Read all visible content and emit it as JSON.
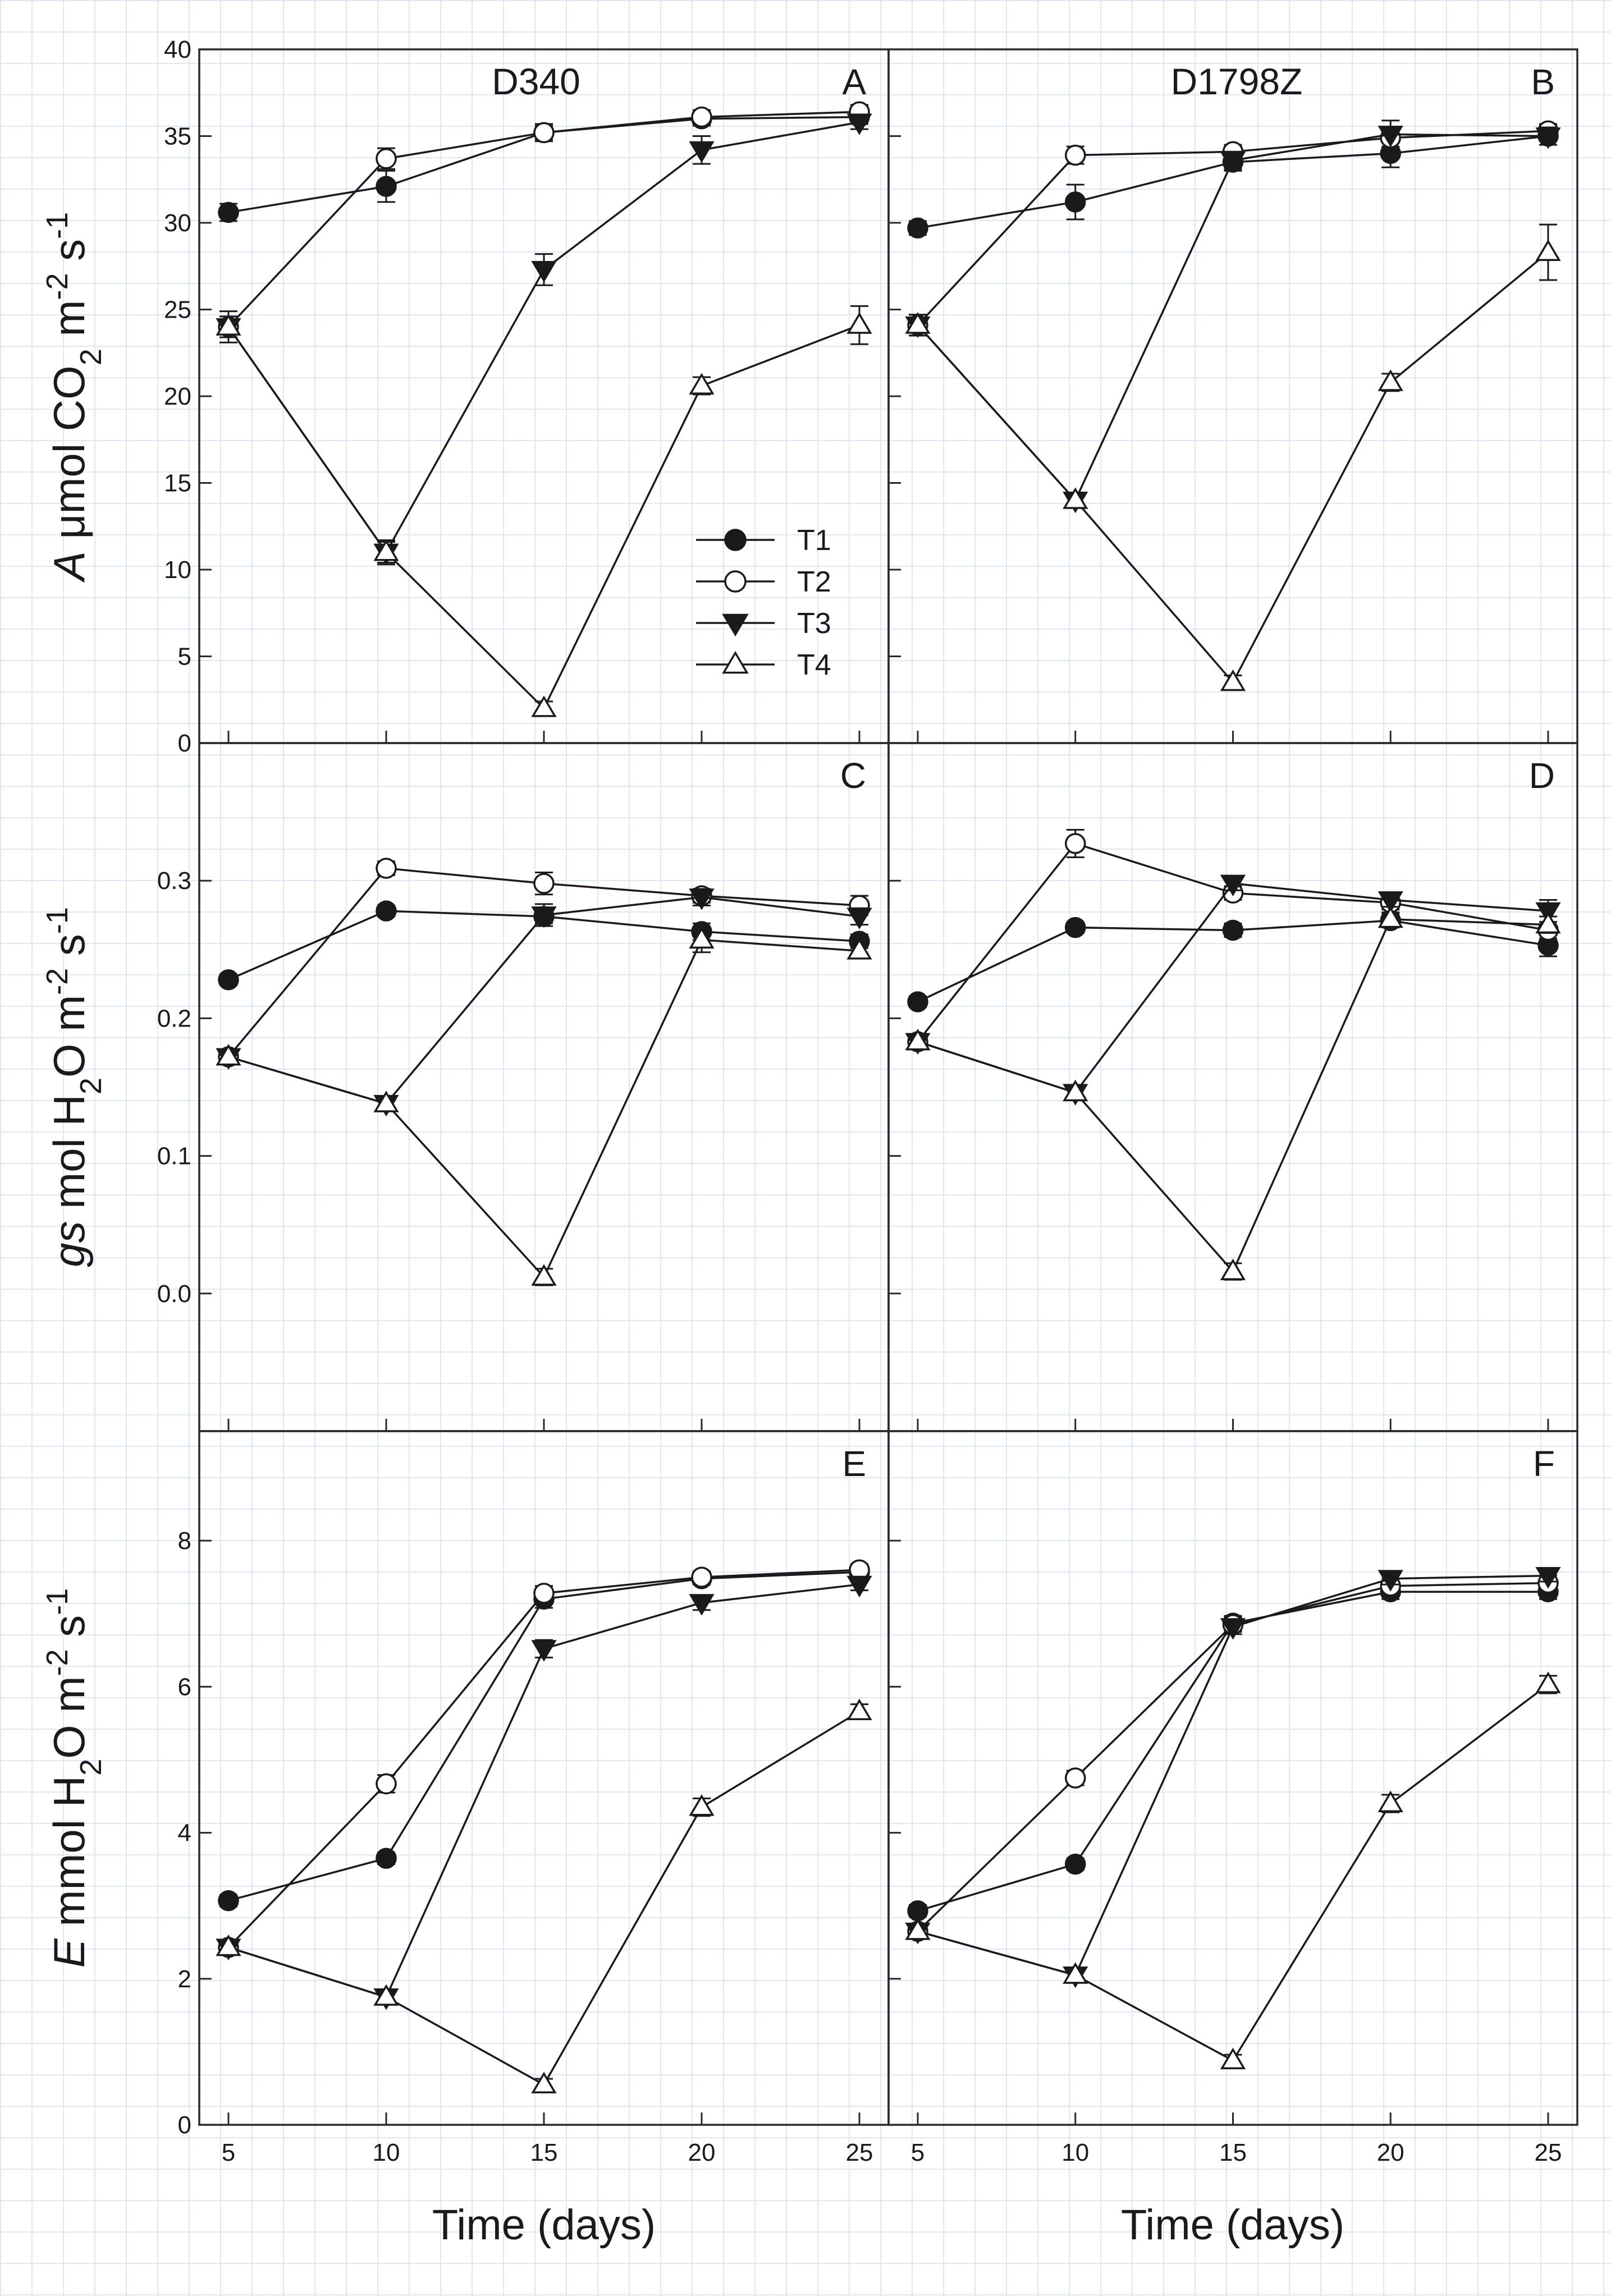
{
  "figure": {
    "xlabel": "Time (days)",
    "legend": [
      {
        "name": "T1",
        "marker": "filled-circle"
      },
      {
        "name": "T2",
        "marker": "open-circle"
      },
      {
        "name": "T3",
        "marker": "filled-triangle-down"
      },
      {
        "name": "T4",
        "marker": "open-triangle-up"
      }
    ],
    "columns": [
      "D340",
      "D1798Z"
    ],
    "rows": [
      {
        "var": "A",
        "unit_parts": [
          {
            "t": " μmol CO"
          },
          {
            "t": "2",
            "sub": true
          },
          {
            "t": " m"
          },
          {
            "t": "-2",
            "sup": true
          },
          {
            "t": " s"
          },
          {
            "t": "-1",
            "sup": true
          }
        ]
      },
      {
        "var": "gs",
        "unit_parts": [
          {
            "t": " mol H"
          },
          {
            "t": "2",
            "sub": true
          },
          {
            "t": "O m"
          },
          {
            "t": "-2",
            "sup": true
          },
          {
            "t": " s"
          },
          {
            "t": "-1",
            "sup": true
          }
        ]
      },
      {
        "var": "E",
        "unit_parts": [
          {
            "t": " mmol H"
          },
          {
            "t": "2",
            "sub": true
          },
          {
            "t": "O m"
          },
          {
            "t": "-2",
            "sup": true
          },
          {
            "t": " s"
          },
          {
            "t": "-1",
            "sup": true
          }
        ]
      }
    ]
  },
  "chart_data": [
    {
      "type": "line",
      "panel": "A",
      "cultivar": "D340",
      "ylabel": "A μmol CO2 m-2 s-1",
      "xlabel": "Time (days)",
      "x": [
        5,
        10,
        15,
        20,
        25
      ],
      "ylim": [
        0,
        40
      ],
      "yticks": [
        0,
        5,
        10,
        15,
        20,
        25,
        30,
        35,
        40
      ],
      "xticks": [
        5,
        10,
        15,
        20,
        25
      ],
      "series": [
        {
          "name": "T1",
          "values": [
            30.6,
            32.1,
            35.2,
            36.0,
            36.1
          ],
          "err": [
            0.5,
            0.9,
            0.4,
            0.4,
            0.4
          ]
        },
        {
          "name": "T2",
          "values": [
            24.0,
            33.7,
            35.2,
            36.1,
            36.4
          ],
          "err": [
            0.6,
            0.6,
            0.5,
            0.4,
            0.4
          ]
        },
        {
          "name": "T3",
          "values": [
            24.0,
            11.0,
            27.3,
            34.2,
            35.8
          ],
          "err": [
            0.6,
            0.7,
            0.9,
            0.8,
            0.4
          ]
        },
        {
          "name": "T4",
          "values": [
            24.0,
            11.0,
            2.0,
            20.6,
            24.1
          ],
          "err": [
            0.9,
            0.6,
            0.4,
            0.5,
            1.1
          ]
        }
      ]
    },
    {
      "type": "line",
      "panel": "B",
      "cultivar": "D1798Z",
      "ylabel": "A μmol CO2 m-2 s-1",
      "xlabel": "Time (days)",
      "x": [
        5,
        10,
        15,
        20,
        25
      ],
      "ylim": [
        0,
        40
      ],
      "yticks": [
        0,
        5,
        10,
        15,
        20,
        25,
        30,
        35,
        40
      ],
      "xticks": [
        5,
        10,
        15,
        20,
        25
      ],
      "series": [
        {
          "name": "T1",
          "values": [
            29.7,
            31.2,
            33.5,
            34.0,
            35.0
          ],
          "err": [
            0.4,
            1.0,
            0.5,
            0.8,
            0.5
          ]
        },
        {
          "name": "T2",
          "values": [
            24.1,
            33.9,
            34.1,
            34.9,
            35.3
          ],
          "err": [
            0.6,
            0.5,
            0.4,
            0.5,
            0.4
          ]
        },
        {
          "name": "T3",
          "values": [
            24.1,
            14.0,
            33.6,
            35.1,
            35.0
          ],
          "err": [
            0.6,
            0.4,
            0.5,
            0.8,
            0.5
          ]
        },
        {
          "name": "T4",
          "values": [
            24.1,
            14.0,
            3.5,
            20.8,
            28.3
          ],
          "err": [
            0.6,
            0.4,
            0.4,
            0.5,
            1.6
          ]
        }
      ]
    },
    {
      "type": "line",
      "panel": "C",
      "cultivar": "D340",
      "ylabel": "gs mol H2O m-2 s-1",
      "xlabel": "Time (days)",
      "x": [
        5,
        10,
        15,
        20,
        25
      ],
      "ylim": [
        -0.1,
        0.4
      ],
      "yticks": [
        0.0,
        0.1,
        0.2,
        0.3
      ],
      "xticks": [
        5,
        10,
        15,
        20,
        25
      ],
      "series": [
        {
          "name": "T1",
          "values": [
            0.228,
            0.278,
            0.274,
            0.263,
            0.256
          ],
          "err": [
            0.004,
            0.004,
            0.005,
            0.006,
            0.005
          ]
        },
        {
          "name": "T2",
          "values": [
            0.172,
            0.309,
            0.298,
            0.289,
            0.282
          ],
          "err": [
            0.004,
            0.005,
            0.008,
            0.005,
            0.007
          ]
        },
        {
          "name": "T3",
          "values": [
            0.172,
            0.138,
            0.275,
            0.288,
            0.274
          ],
          "err": [
            0.004,
            0.004,
            0.008,
            0.006,
            0.006
          ]
        },
        {
          "name": "T4",
          "values": [
            0.172,
            0.138,
            0.012,
            0.257,
            0.249
          ],
          "err": [
            0.004,
            0.004,
            0.006,
            0.009,
            0.005
          ]
        }
      ]
    },
    {
      "type": "line",
      "panel": "D",
      "cultivar": "D1798Z",
      "ylabel": "gs mol H2O m-2 s-1",
      "xlabel": "Time (days)",
      "x": [
        5,
        10,
        15,
        20,
        25
      ],
      "ylim": [
        -0.1,
        0.4
      ],
      "yticks": [
        0.0,
        0.1,
        0.2,
        0.3
      ],
      "xticks": [
        5,
        10,
        15,
        20,
        25
      ],
      "series": [
        {
          "name": "T1",
          "values": [
            0.212,
            0.266,
            0.264,
            0.271,
            0.253
          ],
          "err": [
            0.004,
            0.004,
            0.005,
            0.005,
            0.008
          ]
        },
        {
          "name": "T2",
          "values": [
            0.183,
            0.327,
            0.291,
            0.284,
            0.264
          ],
          "err": [
            0.004,
            0.01,
            0.005,
            0.005,
            0.006
          ]
        },
        {
          "name": "T3",
          "values": [
            0.183,
            0.146,
            0.298,
            0.286,
            0.278
          ],
          "err": [
            0.004,
            0.004,
            0.005,
            0.005,
            0.008
          ]
        },
        {
          "name": "T4",
          "values": [
            0.183,
            0.146,
            0.016,
            0.272,
            0.268
          ],
          "err": [
            0.004,
            0.004,
            0.006,
            0.005,
            0.006
          ]
        }
      ]
    },
    {
      "type": "line",
      "panel": "E",
      "cultivar": "D340",
      "ylabel": "E mmol H2O m-2 s-1",
      "xlabel": "Time (days)",
      "x": [
        5,
        10,
        15,
        20,
        25
      ],
      "ylim": [
        0,
        9.5
      ],
      "yticks": [
        0,
        2,
        4,
        6,
        8
      ],
      "xticks": [
        5,
        10,
        15,
        20,
        25
      ],
      "series": [
        {
          "name": "T1",
          "values": [
            3.07,
            3.65,
            7.2,
            7.48,
            7.57
          ],
          "err": [
            0.08,
            0.08,
            0.12,
            0.08,
            0.08
          ]
        },
        {
          "name": "T2",
          "values": [
            2.43,
            4.67,
            7.28,
            7.5,
            7.6
          ],
          "err": [
            0.08,
            0.12,
            0.1,
            0.08,
            0.08
          ]
        },
        {
          "name": "T3",
          "values": [
            2.43,
            1.75,
            6.52,
            7.15,
            7.4
          ],
          "err": [
            0.08,
            0.08,
            0.12,
            0.1,
            0.08
          ]
        },
        {
          "name": "T4",
          "values": [
            2.43,
            1.75,
            0.55,
            4.35,
            5.66
          ],
          "err": [
            0.08,
            0.08,
            0.08,
            0.12,
            0.1
          ]
        }
      ]
    },
    {
      "type": "line",
      "panel": "F",
      "cultivar": "D1798Z",
      "ylabel": "E mmol H2O m-2 s-1",
      "xlabel": "Time (days)",
      "x": [
        5,
        10,
        15,
        20,
        25
      ],
      "ylim": [
        0,
        9.5
      ],
      "yticks": [
        0,
        2,
        4,
        6,
        8
      ],
      "xticks": [
        5,
        10,
        15,
        20,
        25
      ],
      "series": [
        {
          "name": "T1",
          "values": [
            2.93,
            3.57,
            6.87,
            7.3,
            7.3
          ],
          "err": [
            0.08,
            0.08,
            0.1,
            0.1,
            0.1
          ]
        },
        {
          "name": "T2",
          "values": [
            2.65,
            4.75,
            6.85,
            7.38,
            7.42
          ],
          "err": [
            0.08,
            0.1,
            0.1,
            0.1,
            0.1
          ]
        },
        {
          "name": "T3",
          "values": [
            2.65,
            2.05,
            6.82,
            7.48,
            7.52
          ],
          "err": [
            0.08,
            0.08,
            0.1,
            0.08,
            0.08
          ]
        },
        {
          "name": "T4",
          "values": [
            2.65,
            2.05,
            0.88,
            4.4,
            6.03
          ],
          "err": [
            0.08,
            0.08,
            0.08,
            0.12,
            0.12
          ]
        }
      ]
    }
  ]
}
